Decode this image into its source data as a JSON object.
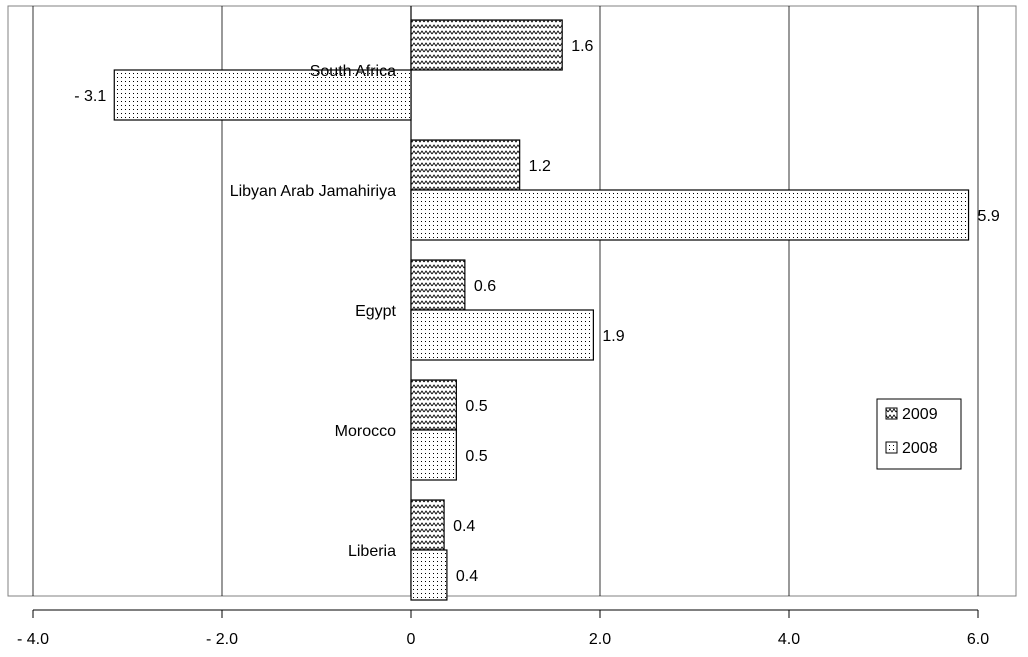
{
  "chart_data": {
    "type": "bar",
    "orientation": "horizontal",
    "categories": [
      "South Africa",
      "Libyan Arab Jamahiriya",
      "Egypt",
      "Morocco",
      "Liberia"
    ],
    "series": [
      {
        "name": "2009",
        "values": [
          1.6,
          1.15,
          0.57,
          0.48,
          0.35
        ],
        "labels": [
          "1.6",
          "1.2",
          "0.6",
          "0.5",
          "0.4"
        ],
        "pattern": "zigzag"
      },
      {
        "name": "2008",
        "values": [
          -3.14,
          5.9,
          1.93,
          0.48,
          0.38
        ],
        "labels": [
          "- 3.1",
          "5.9",
          "1.9",
          "0.5",
          "0.4"
        ],
        "pattern": "dots"
      }
    ],
    "x_ticks": [
      -4,
      -2,
      0,
      2,
      4,
      6
    ],
    "x_tick_labels": [
      "- 4.0",
      "- 2.0",
      "0",
      "2.0",
      "4.0",
      "6.0"
    ],
    "xlim": [
      -4,
      6
    ],
    "grid": "vertical",
    "legend_position": "right",
    "colors": {
      "bar_fill": "#ffffff",
      "pattern": "#000000",
      "grid": "#000000"
    }
  }
}
